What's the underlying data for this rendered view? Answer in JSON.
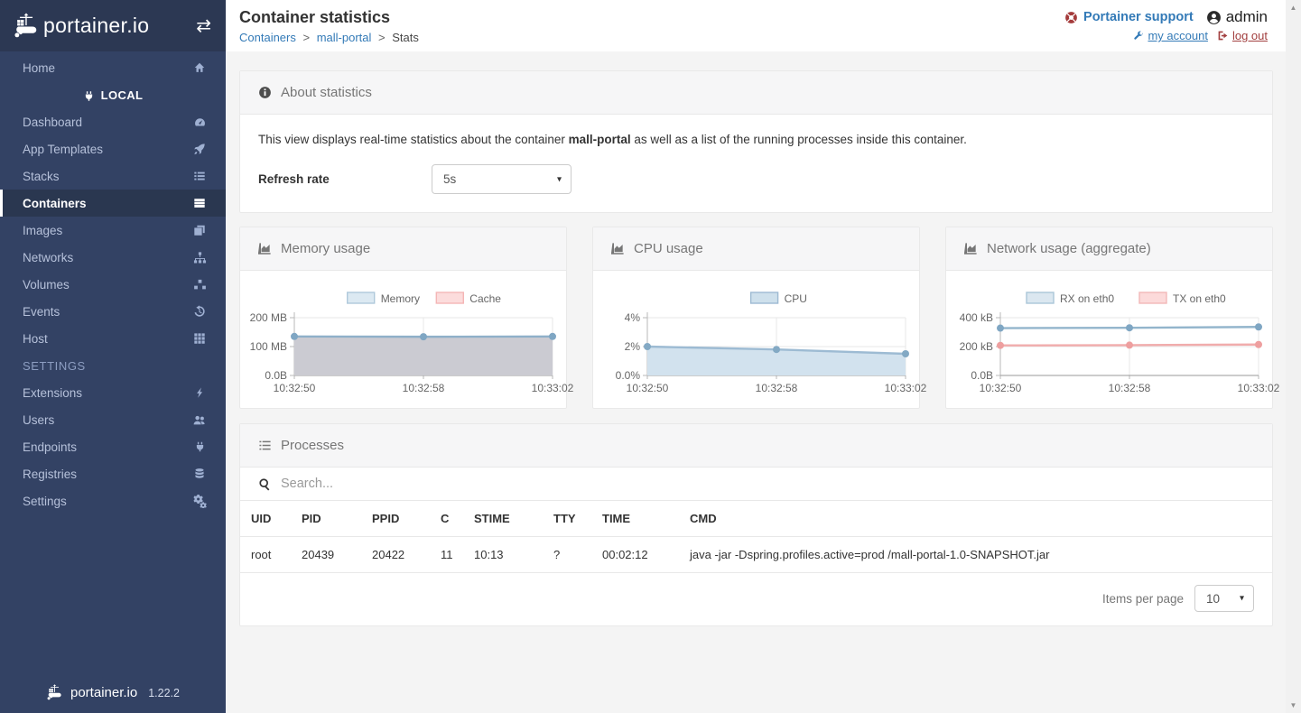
{
  "app": {
    "name": "portainer.io",
    "version": "1.22.2"
  },
  "colors": {
    "accent": "#337ab7",
    "danger": "#a23f3f",
    "sidebar": "#334264",
    "sidebar_header": "#2c3853"
  },
  "sidebar": {
    "home_label": "Home",
    "local_heading": "LOCAL",
    "settings_heading": "SETTINGS",
    "items_local": [
      "Dashboard",
      "App Templates",
      "Stacks",
      "Containers",
      "Images",
      "Networks",
      "Volumes",
      "Events",
      "Host"
    ],
    "items_settings": [
      "Extensions",
      "Users",
      "Endpoints",
      "Registries",
      "Settings"
    ]
  },
  "header": {
    "title": "Container statistics",
    "breadcrumb": {
      "containers": "Containers",
      "container": "mall-portal",
      "current": "Stats",
      "separator": ">"
    },
    "support_label": "Portainer support",
    "username": "admin",
    "my_account_label": "my account",
    "log_out_label": "log out"
  },
  "about": {
    "title": "About statistics",
    "description_prefix": "This view displays real-time statistics about the container ",
    "container_name": "mall-portal",
    "description_suffix": " as well as a list of the running processes inside this container.",
    "refresh_label": "Refresh rate",
    "refresh_value": "5s"
  },
  "chart_data": [
    {
      "type": "area",
      "title": "Memory usage",
      "x": [
        "10:32:50",
        "10:32:58",
        "10:33:02"
      ],
      "ylim": [
        0,
        200
      ],
      "yticks": [
        {
          "label": "200 MB",
          "value": 200
        },
        {
          "label": "100 MB",
          "value": 100
        },
        {
          "label": "0.0B",
          "value": 0
        }
      ],
      "series": [
        {
          "name": "Memory",
          "values": [
            135,
            134,
            135
          ],
          "line": "#8fb0c9",
          "point": "#7fa6c3",
          "area": "#cbcbd2",
          "legend_fill": "#dce9f2",
          "legend_border": "#afc9db"
        },
        {
          "name": "Cache",
          "values": [],
          "line": "#f0a8a8",
          "point": "#eb9d9d",
          "area": "",
          "legend_fill": "#fcdcdc",
          "legend_border": "#f4b6b6"
        }
      ],
      "legend_position": "top",
      "grid": true
    },
    {
      "type": "area",
      "title": "CPU usage",
      "x": [
        "10:32:50",
        "10:32:58",
        "10:33:02"
      ],
      "ylim": [
        0,
        4
      ],
      "yticks": [
        {
          "label": "4%",
          "value": 4
        },
        {
          "label": "2%",
          "value": 2
        },
        {
          "label": "0.0%",
          "value": 0
        }
      ],
      "series": [
        {
          "name": "CPU",
          "values": [
            2.0,
            1.8,
            1.5
          ],
          "line": "#9dbbd3",
          "point": "#83a9c4",
          "area": "#d2e2ee",
          "legend_fill": "#cee0ec",
          "legend_border": "#9dbad2"
        }
      ],
      "legend_position": "top",
      "grid": true
    },
    {
      "type": "line",
      "title": "Network usage (aggregate)",
      "x": [
        "10:32:50",
        "10:32:58",
        "10:33:02"
      ],
      "ylim": [
        0,
        400
      ],
      "yticks": [
        {
          "label": "400 kB",
          "value": 400
        },
        {
          "label": "200 kB",
          "value": 200
        },
        {
          "label": "0.0B",
          "value": 0
        }
      ],
      "series": [
        {
          "name": "RX on eth0",
          "values": [
            328,
            330,
            336
          ],
          "line": "#93b5cc",
          "point": "#7fa6c3",
          "area": "",
          "legend_fill": "#dbe7f0",
          "legend_border": "#aac6d8"
        },
        {
          "name": "TX on eth0",
          "values": [
            208,
            210,
            214
          ],
          "line": "#f1acac",
          "point": "#ee9f9f",
          "area": "",
          "legend_fill": "#fcdada",
          "legend_border": "#f2b8b8"
        }
      ],
      "legend_position": "top",
      "grid": true
    }
  ],
  "processes": {
    "title": "Processes",
    "search_placeholder": "Search...",
    "columns": [
      "UID",
      "PID",
      "PPID",
      "C",
      "STIME",
      "TTY",
      "TIME",
      "CMD"
    ],
    "rows": [
      {
        "uid": "root",
        "pid": "20439",
        "ppid": "20422",
        "c": "11",
        "stime": "10:13",
        "tty": "?",
        "time": "00:02:12",
        "cmd": "java -jar -Dspring.profiles.active=prod /mall-portal-1.0-SNAPSHOT.jar"
      }
    ],
    "items_per_page_label": "Items per page",
    "items_per_page_value": "10"
  }
}
